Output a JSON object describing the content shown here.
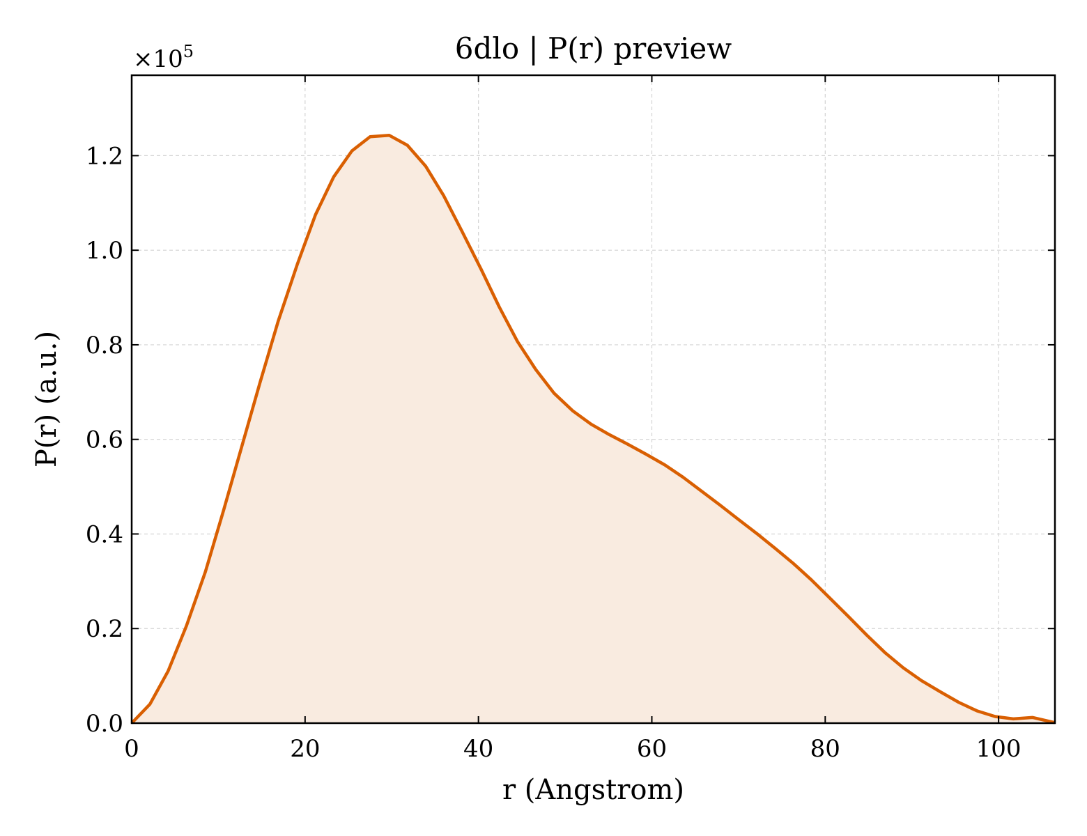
{
  "chart_data": {
    "type": "area",
    "title": "6dlo | P(r) preview",
    "xlabel": "r (Angstrom)",
    "ylabel": "P(r) (a.u.)",
    "y_scale_prefix": "×10",
    "y_scale_exponent": "5",
    "xlim": [
      0,
      106.5
    ],
    "ylim": [
      0,
      1.37
    ],
    "x_ticks": [
      0,
      20,
      40,
      60,
      80,
      100
    ],
    "x_tick_labels": [
      "0",
      "20",
      "40",
      "60",
      "80",
      "100"
    ],
    "y_ticks": [
      0.0,
      0.2,
      0.4,
      0.6,
      0.8,
      1.0,
      1.2
    ],
    "y_tick_labels": [
      "0.0",
      "0.2",
      "0.4",
      "0.6",
      "0.8",
      "1.0",
      "1.2"
    ],
    "grid": true,
    "colors": {
      "line": "#d95f02",
      "fill": "#f9ebe0",
      "grid": "#d3d3d3",
      "axis": "#000000"
    },
    "series": [
      {
        "x": [
          0,
          2.1,
          4.2,
          6.3,
          8.5,
          10.6,
          12.7,
          14.8,
          16.9,
          19.1,
          21.2,
          23.3,
          25.4,
          27.5,
          29.7,
          31.8,
          33.9,
          36.0,
          38.1,
          40.3,
          42.4,
          44.5,
          46.6,
          48.7,
          50.9,
          53.0,
          55.1,
          57.2,
          59.3,
          61.5,
          63.6,
          65.7,
          67.8,
          69.9,
          72.1,
          74.2,
          76.3,
          78.4,
          80.5,
          82.7,
          84.8,
          86.9,
          89.0,
          91.1,
          93.3,
          95.4,
          97.5,
          99.6,
          101.7,
          103.9,
          106.5
        ],
        "y": [
          0.0,
          0.04,
          0.11,
          0.205,
          0.32,
          0.45,
          0.585,
          0.72,
          0.85,
          0.97,
          1.075,
          1.155,
          1.21,
          1.24,
          1.243,
          1.222,
          1.178,
          1.115,
          1.04,
          0.96,
          0.88,
          0.807,
          0.748,
          0.698,
          0.66,
          0.632,
          0.61,
          0.59,
          0.569,
          0.546,
          0.52,
          0.491,
          0.462,
          0.432,
          0.401,
          0.37,
          0.338,
          0.303,
          0.265,
          0.225,
          0.186,
          0.149,
          0.117,
          0.09,
          0.066,
          0.044,
          0.026,
          0.014,
          0.009,
          0.012,
          0.001
        ]
      }
    ]
  }
}
